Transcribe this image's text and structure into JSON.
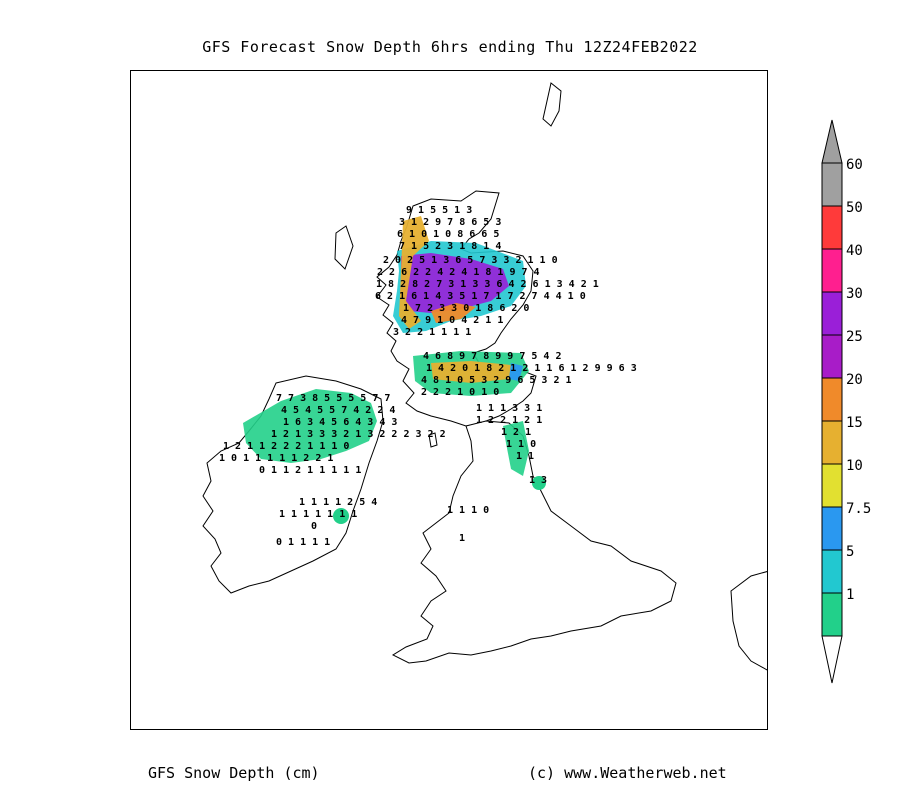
{
  "title": "GFS Forecast Snow Depth 6hrs ending Thu 12Z24FEB2022",
  "footer": {
    "left": "GFS Snow Depth (cm)",
    "right": "(c) www.Weatherweb.net"
  },
  "legend": {
    "levels": [
      {
        "label": "60",
        "color": "#a0a0a0"
      },
      {
        "label": "50",
        "color": "#ff3a3a"
      },
      {
        "label": "40",
        "color": "#ff1f8f"
      },
      {
        "label": "30",
        "color": "#9a1fd8"
      },
      {
        "label": "25",
        "color": "#a81cc8"
      },
      {
        "label": "20",
        "color": "#f08a2a"
      },
      {
        "label": "15",
        "color": "#e6b030"
      },
      {
        "label": "10",
        "color": "#e2e030"
      },
      {
        "label": "7.5",
        "color": "#2a98f0"
      },
      {
        "label": "5",
        "color": "#22c8d0"
      },
      {
        "label": "1",
        "color": "#22d08a"
      }
    ]
  },
  "map": {
    "land_outline_color": "#000000",
    "snow_zones": [
      {
        "region": "northern-highlands",
        "level": "5",
        "color": "#22c8d0"
      },
      {
        "region": "central-highlands",
        "level": "30",
        "color": "#9a1fd8"
      },
      {
        "region": "highlands-core",
        "level": "20",
        "color": "#f08a2a"
      },
      {
        "region": "southern-uplands",
        "level": "15",
        "color": "#e6b030"
      },
      {
        "region": "northern-ireland",
        "level": "1",
        "color": "#22d08a"
      },
      {
        "region": "pennines",
        "level": "1",
        "color": "#22d08a"
      }
    ],
    "value_rows": [
      "9 1      5 5 1 3",
      "3 1 2 9 7 8 6 5 3",
      "6 1 0 1 0 8 6 6 5",
      "7 1 5 2 3 1 8 1 4",
      "2 0 2 5 1 3 6 5 7 3 3 2 1 1 0",
      "2 2 6 2 2 4 2 4 1 8 1 9 7 4",
      "1 8 2 8 2 7 3 1 3 3 6 4 2 6 1 3 4 2 1",
      "6 2 1 6 1 4 3 5 1 7 1 7 2 7 4 4 1 0",
      "1 7 2 3 3 0 1 8 6 2 0",
      "4 7 9 1 0 4 2 1 1",
      "3 2 2 1 1 1 1",
      "4 6 8 9 7 8 9 9 7 5 4 2",
      "1 4 2 0 1 8 2 1 2 1 1 6 1 2 9 9 6 3",
      "4 8 1 0 5 3 2 9 6 5 3 2 1",
      "2 2 2 1 0      1 0",
      "1 1 1 3 3 1",
      "1 2 2 1 2 1",
      "1 2 1",
      "1 1 0",
      "1 1",
      "1 3",
      "7 7 3 8 5 5 5 5 7 7",
      "4 5 4 5 5 7 4 2 2 4",
      "1 6 3 4 5 6 4 3 4 3",
      "1 2 1 3 3 3 2 1 3 2 2 2 3 2 2",
      "1 2 1 1 2 2 2 1 1 1 0",
      "1 0 1 1 1 1 1 2 2 1",
      "0 1 1 2 1 1 1 1 1",
      "1 1 1 1 2 5 4",
      "1 1 1 1 1 1 1",
      "0",
      "0 1 1 1 1",
      "1 1 1 0",
      "1"
    ]
  }
}
